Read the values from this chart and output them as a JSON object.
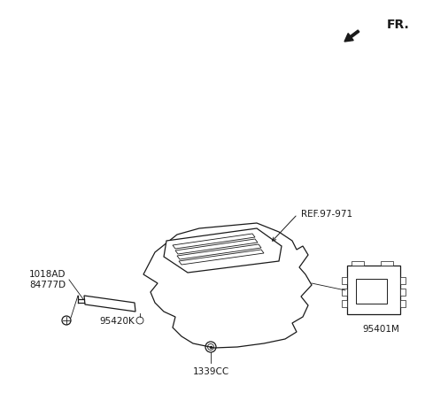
{
  "bg_color": "#ffffff",
  "line_color": "#1a1a1a",
  "fr_text": "FR.",
  "labels": {
    "REF97971": "REF.97-971",
    "label_1018AD": "1018AD",
    "label_84777D": "84777D",
    "label_95420K": "95420K",
    "label_1339CC": "1339CC",
    "label_95401M": "95401M"
  }
}
